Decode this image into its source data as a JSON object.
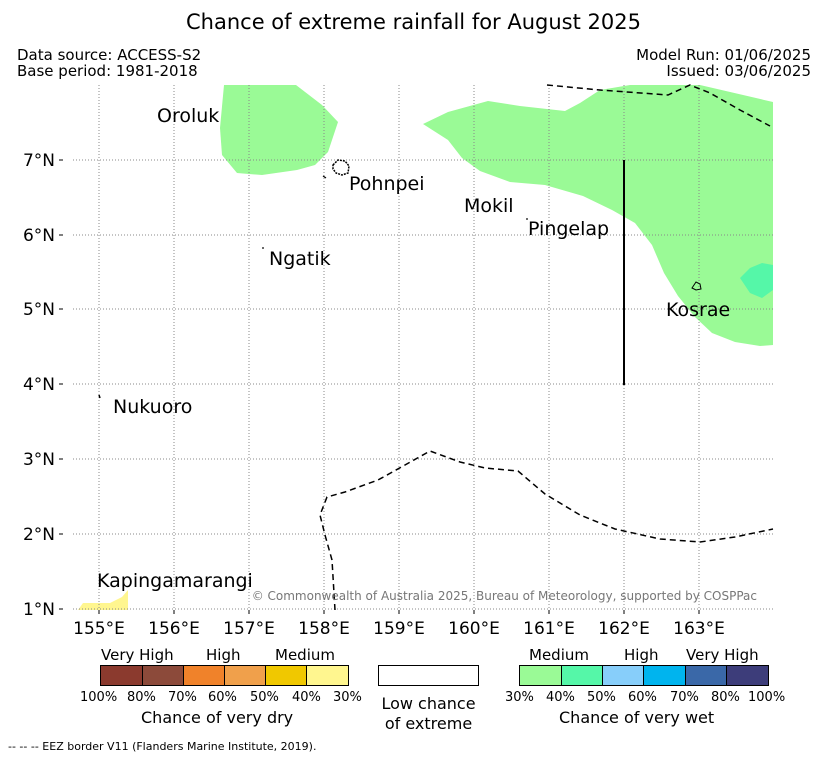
{
  "title": "Chance of extreme rainfall for August 2025",
  "header": {
    "data_source": "Data source: ACCESS-S2",
    "base_period": "Base period: 1981-2018",
    "model_run": "Model Run: 01/06/2025",
    "issued": "Issued: 03/06/2025"
  },
  "map": {
    "lon_ticks": [
      "155°E",
      "156°E",
      "157°E",
      "158°E",
      "159°E",
      "160°E",
      "161°E",
      "162°E",
      "163°E"
    ],
    "lat_ticks": [
      "7°N",
      "6°N",
      "5°N",
      "4°N",
      "3°N",
      "2°N",
      "1°N"
    ],
    "places": {
      "oroluk": "Oroluk",
      "pohnpei": "Pohnpei",
      "mokil": "Mokil",
      "pingelap": "Pingelap",
      "ngatik": "Ngatik",
      "kosrae": "Kosrae",
      "nukuoro": "Nukuoro",
      "kapingamarangi": "Kapingamarangi"
    },
    "copyright": "© Commonwealth of Australia 2025, Bureau of Meteorology, supported by COSPPac"
  },
  "legend": {
    "dry": {
      "levels": [
        "Very High",
        "High",
        "Medium"
      ],
      "percents": [
        "100%",
        "80%",
        "70%",
        "60%",
        "50%",
        "40%",
        "30%"
      ],
      "title": "Chance of very dry",
      "colors": [
        "#8b3a2e",
        "#8c4a3a",
        "#f0822a",
        "#f0a04b",
        "#f0c800",
        "#fff68f"
      ]
    },
    "neutral": {
      "line1": "Low chance",
      "line2": "of extreme"
    },
    "wet": {
      "levels": [
        "Medium",
        "High",
        "Very High"
      ],
      "percents": [
        "30%",
        "40%",
        "50%",
        "60%",
        "70%",
        "80%",
        "100%"
      ],
      "title": "Chance of very wet",
      "colors": [
        "#9afa96",
        "#55f7a8",
        "#87cefa",
        "#00b4ee",
        "#3a68a8",
        "#3d3d7a"
      ]
    }
  },
  "footnote": "--  --  -- EEZ border V11 (Flanders Marine Institute, 2019).",
  "colors": {
    "medium_wet": "#9afa96",
    "medium_high_wet": "#55f7a8",
    "medium_dry": "#fff68f"
  }
}
